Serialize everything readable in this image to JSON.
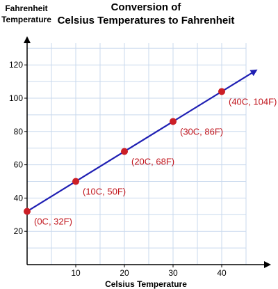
{
  "chart_data": {
    "type": "line",
    "title_line1": "Conversion of",
    "title_line2": "Celsius Temperatures to Fahrenheit",
    "ylabel_line1": "Fahrenheit",
    "ylabel_line2": "Temperature",
    "xlabel": "Celsius Temperature",
    "xlim": [
      0,
      45
    ],
    "ylim": [
      0,
      130
    ],
    "xticks": [
      10,
      20,
      30,
      40
    ],
    "yticks": [
      20,
      40,
      60,
      80,
      100,
      120
    ],
    "grid": true,
    "colors": {
      "line": "#1f1fb3",
      "point": "#cc1f26",
      "label": "#c0141c",
      "grid": "#c9d9ee"
    },
    "series": [
      {
        "x": [
          0,
          10,
          20,
          30,
          40
        ],
        "y": [
          32,
          50,
          68,
          86,
          104
        ],
        "labels": [
          "(0C, 32F)",
          "(10C, 50F)",
          "(20C, 68F)",
          "(30C, 86F)",
          "(40C, 104F)"
        ]
      }
    ]
  }
}
